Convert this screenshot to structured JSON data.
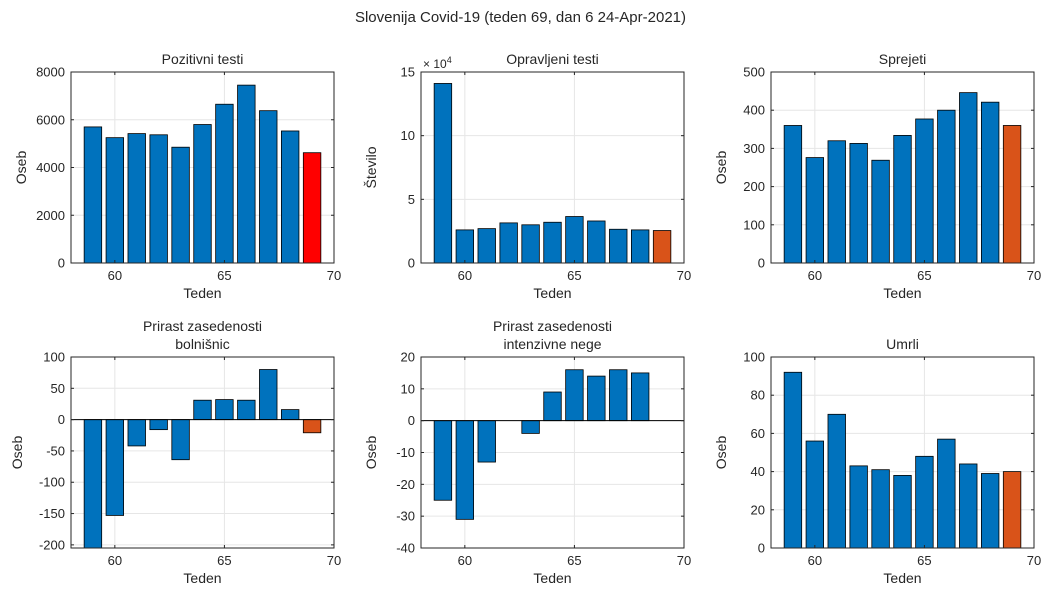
{
  "figure": {
    "title": "Slovenija Covid-19 (teden 69, dan 6 24-Apr-2021)"
  },
  "colors": {
    "bar": "#0072BD",
    "highlight_red": "#FF0000",
    "highlight_orange": "#D95319",
    "grid": "#E6E6E6",
    "axis": "#262626"
  },
  "chart_data": [
    {
      "type": "bar",
      "title": [
        "Pozitivni testi"
      ],
      "xlabel": "Teden",
      "ylabel": "Oseb",
      "x": [
        59,
        60,
        61,
        62,
        63,
        64,
        65,
        66,
        67,
        68,
        69
      ],
      "values": [
        5700,
        5250,
        5420,
        5370,
        4850,
        5800,
        6650,
        7450,
        6380,
        5530,
        4620
      ],
      "highlight": "highlight_red",
      "xlim": [
        58,
        70
      ],
      "ylim": [
        0,
        8000
      ],
      "xticks": [
        60,
        65,
        70
      ],
      "xtick_labels": [
        "60",
        "65",
        "70"
      ],
      "yticks": [
        0,
        2000,
        4000,
        6000,
        8000
      ],
      "ytick_labels": [
        "0",
        "2000",
        "4000",
        "6000",
        "8000"
      ],
      "grid": true
    },
    {
      "type": "bar",
      "title": [
        "Opravljeni testi"
      ],
      "xlabel": "Teden",
      "ylabel": "Število",
      "exponent_label": "× 10",
      "exponent_power": "4",
      "x": [
        59,
        60,
        61,
        62,
        63,
        64,
        65,
        66,
        67,
        68,
        69
      ],
      "values": [
        14.1,
        2.6,
        2.7,
        3.15,
        3.0,
        3.2,
        3.65,
        3.3,
        2.65,
        2.6,
        2.55
      ],
      "highlight": "highlight_orange",
      "xlim": [
        58,
        70
      ],
      "ylim": [
        0,
        15
      ],
      "xticks": [
        60,
        65,
        70
      ],
      "xtick_labels": [
        "60",
        "65",
        "70"
      ],
      "yticks": [
        0,
        5,
        10,
        15
      ],
      "ytick_labels": [
        "0",
        "5",
        "10",
        "15"
      ],
      "grid": true
    },
    {
      "type": "bar",
      "title": [
        "Sprejeti"
      ],
      "xlabel": "Teden",
      "ylabel": "Oseb",
      "x": [
        59,
        60,
        61,
        62,
        63,
        64,
        65,
        66,
        67,
        68,
        69
      ],
      "values": [
        360,
        276,
        320,
        313,
        269,
        334,
        377,
        400,
        446,
        421,
        360
      ],
      "highlight": "highlight_orange",
      "xlim": [
        58,
        70
      ],
      "ylim": [
        0,
        500
      ],
      "xticks": [
        60,
        65,
        70
      ],
      "xtick_labels": [
        "60",
        "65",
        "70"
      ],
      "yticks": [
        0,
        100,
        200,
        300,
        400,
        500
      ],
      "ytick_labels": [
        "0",
        "100",
        "200",
        "300",
        "400",
        "500"
      ],
      "grid": true
    },
    {
      "type": "bar",
      "title": [
        "Prirast zasedenosti",
        "bolnišnic"
      ],
      "xlabel": "Teden",
      "ylabel": "Oseb",
      "x": [
        59,
        60,
        61,
        62,
        63,
        64,
        65,
        66,
        67,
        68,
        69
      ],
      "values": [
        -210,
        -153,
        -42,
        -16,
        -64,
        31,
        32,
        31,
        80,
        16,
        -21
      ],
      "highlight": "highlight_orange",
      "xlim": [
        58,
        70
      ],
      "ylim": [
        -205,
        100
      ],
      "xticks": [
        60,
        65,
        70
      ],
      "xtick_labels": [
        "60",
        "65",
        "70"
      ],
      "yticks": [
        -200,
        -150,
        -100,
        -50,
        0,
        50,
        100
      ],
      "ytick_labels": [
        "-200",
        "-150",
        "-100",
        "-50",
        "0",
        "50",
        "100"
      ],
      "grid": true,
      "zero_line": true
    },
    {
      "type": "bar",
      "title": [
        "Prirast zasedenosti",
        "intenzivne nege"
      ],
      "xlabel": "Teden",
      "ylabel": "Oseb",
      "x": [
        59,
        60,
        61,
        62,
        63,
        64,
        65,
        66,
        67,
        68,
        69
      ],
      "values": [
        -25,
        -31,
        -13,
        0,
        -4,
        9,
        16,
        14,
        16,
        15,
        0
      ],
      "highlight": "",
      "xlim": [
        58,
        70
      ],
      "ylim": [
        -40,
        20
      ],
      "xticks": [
        60,
        65,
        70
      ],
      "xtick_labels": [
        "60",
        "65",
        "70"
      ],
      "yticks": [
        -40,
        -30,
        -20,
        -10,
        0,
        10,
        20
      ],
      "ytick_labels": [
        "-40",
        "-30",
        "-20",
        "-10",
        "0",
        "10",
        "20"
      ],
      "grid": true,
      "zero_line": true
    },
    {
      "type": "bar",
      "title": [
        "Umrli"
      ],
      "xlabel": "Teden",
      "ylabel": "Oseb",
      "x": [
        59,
        60,
        61,
        62,
        63,
        64,
        65,
        66,
        67,
        68,
        69
      ],
      "values": [
        92,
        56,
        70,
        43,
        41,
        38,
        48,
        57,
        44,
        39,
        40
      ],
      "highlight": "highlight_orange",
      "xlim": [
        58,
        70
      ],
      "ylim": [
        0,
        100
      ],
      "xticks": [
        60,
        65,
        70
      ],
      "xtick_labels": [
        "60",
        "65",
        "70"
      ],
      "yticks": [
        0,
        20,
        40,
        60,
        80,
        100
      ],
      "ytick_labels": [
        "0",
        "20",
        "40",
        "60",
        "80",
        "100"
      ],
      "grid": true
    }
  ]
}
